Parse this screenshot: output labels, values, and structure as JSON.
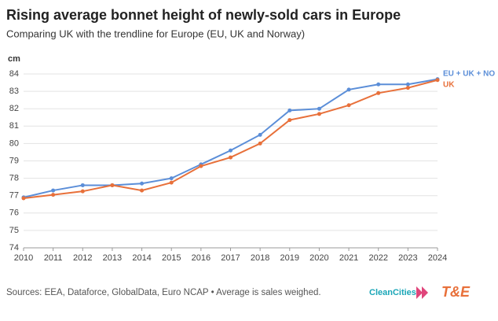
{
  "chart_data": {
    "type": "line",
    "title": "Rising average bonnet height of newly-sold cars in Europe",
    "subtitle": "Comparing UK with the trendline for Europe (EU, UK and Norway)",
    "y_label": "cm",
    "x": [
      2010,
      2011,
      2012,
      2013,
      2014,
      2015,
      2016,
      2017,
      2018,
      2019,
      2020,
      2021,
      2022,
      2023,
      2024
    ],
    "series": [
      {
        "name": "EU + UK + NO",
        "color": "#5b8ed8",
        "values": [
          76.9,
          77.3,
          77.6,
          77.6,
          77.7,
          78.0,
          78.8,
          79.6,
          80.5,
          81.9,
          82.0,
          83.1,
          83.4,
          83.4,
          83.7
        ]
      },
      {
        "name": "UK",
        "color": "#e8703a",
        "values": [
          76.85,
          77.05,
          77.25,
          77.6,
          77.3,
          77.75,
          78.7,
          79.2,
          80.0,
          81.35,
          81.7,
          82.2,
          82.9,
          83.2,
          83.65
        ]
      }
    ],
    "xlim": [
      2010,
      2024
    ],
    "xticks": [
      2010,
      2011,
      2012,
      2013,
      2014,
      2015,
      2016,
      2017,
      2018,
      2019,
      2020,
      2021,
      2022,
      2023,
      2024
    ],
    "ylim": [
      74,
      84
    ],
    "yticks": [
      74,
      75,
      76,
      77,
      78,
      79,
      80,
      81,
      82,
      83,
      84
    ],
    "grid": true,
    "source": "Sources: EEA, Dataforce, GlobalData, Euro NCAP • Average is sales weighed.",
    "logos": [
      "CleanCities",
      "T&E"
    ]
  }
}
